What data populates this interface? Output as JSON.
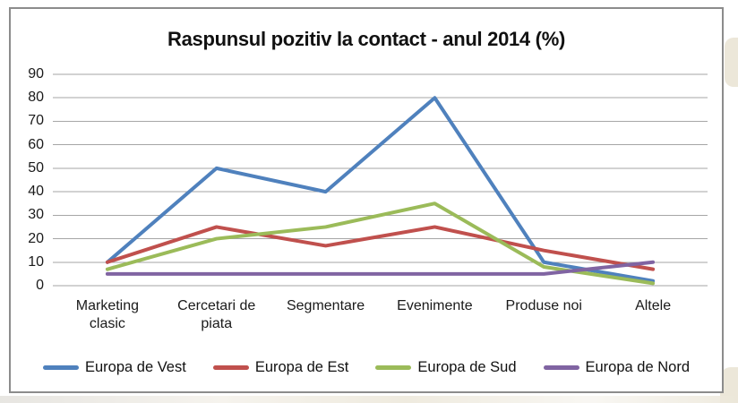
{
  "chart_data": {
    "type": "line",
    "title": "Raspunsul pozitiv la contact - anul 2014 (%)",
    "categories": [
      "Marketing clasic",
      "Cercetari de piata",
      "Segmentare",
      "Evenimente",
      "Produse noi",
      "Altele"
    ],
    "series": [
      {
        "name": "Europa de Vest",
        "color": "#4F81BD",
        "values": [
          10,
          50,
          40,
          80,
          10,
          2
        ]
      },
      {
        "name": "Europa de Est",
        "color": "#C0504D",
        "values": [
          10,
          25,
          17,
          25,
          15,
          7
        ]
      },
      {
        "name": "Europa de Sud",
        "color": "#9BBB59",
        "values": [
          7,
          20,
          25,
          35,
          8,
          1
        ]
      },
      {
        "name": "Europa de Nord",
        "color": "#8064A2",
        "values": [
          5,
          5,
          5,
          5,
          5,
          10
        ]
      }
    ],
    "yticks": [
      90,
      80,
      70,
      60,
      50,
      40,
      30,
      20,
      10,
      0
    ],
    "ylim": [
      0,
      90
    ],
    "grid": true,
    "legend_position": "bottom",
    "gridline_color": "#A6A6A6",
    "frame_border_color": "#8C8C8C",
    "text_color": "#111111"
  }
}
